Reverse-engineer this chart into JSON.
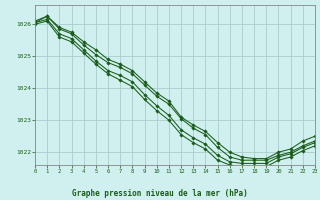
{
  "title": "Graphe pression niveau de la mer (hPa)",
  "bg_color": "#cff0ee",
  "grid_color": "#aacccc",
  "line_color": "#1a5c1a",
  "marker_color": "#1a5c1a",
  "xlim": [
    0,
    23
  ],
  "ylim": [
    1021.6,
    1026.6
  ],
  "yticks": [
    1022,
    1023,
    1024,
    1025,
    1026
  ],
  "xticks": [
    0,
    1,
    2,
    3,
    4,
    5,
    6,
    7,
    8,
    9,
    10,
    11,
    12,
    13,
    14,
    15,
    16,
    17,
    18,
    19,
    20,
    21,
    22,
    23
  ],
  "series": [
    [
      1026.05,
      1026.25,
      1025.85,
      1025.7,
      1025.35,
      1025.05,
      1024.8,
      1024.65,
      1024.45,
      1024.1,
      1023.75,
      1023.5,
      1023.05,
      1022.75,
      1022.55,
      1022.15,
      1021.85,
      1021.75,
      1021.75,
      1021.75,
      1021.9,
      1022.0,
      1022.2,
      1022.35
    ],
    [
      1026.1,
      1026.25,
      1025.9,
      1025.75,
      1025.45,
      1025.2,
      1024.9,
      1024.75,
      1024.55,
      1024.2,
      1023.85,
      1023.6,
      1023.1,
      1022.85,
      1022.65,
      1022.3,
      1022.0,
      1021.85,
      1021.8,
      1021.8,
      1022.0,
      1022.1,
      1022.35,
      1022.5
    ],
    [
      1026.05,
      1026.15,
      1025.7,
      1025.55,
      1025.2,
      1024.85,
      1024.55,
      1024.4,
      1024.2,
      1023.8,
      1023.45,
      1023.15,
      1022.7,
      1022.45,
      1022.25,
      1021.9,
      1021.7,
      1021.65,
      1021.65,
      1021.65,
      1021.85,
      1021.95,
      1022.15,
      1022.3
    ],
    [
      1026.0,
      1026.1,
      1025.6,
      1025.45,
      1025.1,
      1024.75,
      1024.45,
      1024.25,
      1024.05,
      1023.65,
      1023.3,
      1023.0,
      1022.55,
      1022.3,
      1022.1,
      1021.75,
      1021.6,
      1021.55,
      1021.55,
      1021.55,
      1021.75,
      1021.85,
      1022.05,
      1022.2
    ]
  ]
}
